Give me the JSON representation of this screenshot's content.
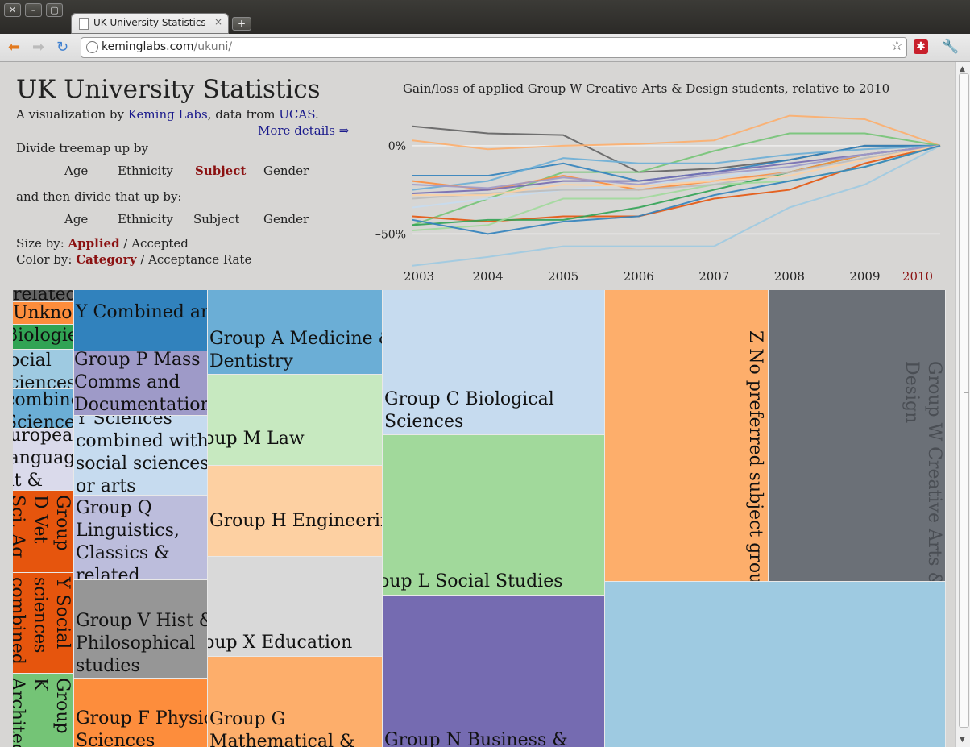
{
  "browser": {
    "tab_title": "UK University Statistics Vis",
    "tab_close": "×",
    "new_tab": "+",
    "url_host": "keminglabs.com",
    "url_path": "/ukuni/",
    "window_buttons": [
      "✕",
      "–",
      "▢"
    ],
    "icons": [
      "back-arrow-icon",
      "forward-arrow-icon",
      "reload-icon",
      "globe-icon",
      "star-icon",
      "extension-icon",
      "wrench-icon"
    ]
  },
  "page": {
    "title": "UK University Statistics",
    "subtitle_prefix": "A visualization by ",
    "subtitle_link1": "Keming Labs",
    "subtitle_mid": ", data from ",
    "subtitle_link2": "UCAS",
    "subtitle_end": ".",
    "more_details": "More details ⇒",
    "divide_label": "Divide treemap up by",
    "then_label": "and then divide that up by:",
    "divide_options": [
      "Age",
      "Ethnicity",
      "Subject",
      "Gender"
    ],
    "divide_selected": "Subject",
    "then_options": [
      "Age",
      "Ethnicity",
      "Subject",
      "Gender"
    ],
    "size_label": "Size by:",
    "size_options": [
      "Applied",
      "Accepted"
    ],
    "size_selected": "Applied",
    "color_label": "Color by:",
    "color_options": [
      "Category",
      "Acceptance Rate"
    ],
    "color_selected": "Category",
    "separator": "/"
  },
  "chart_data": {
    "type": "line",
    "title": "Gain/loss of applied Group W Creative Arts & Design students, relative to 2010",
    "x": [
      2003,
      2004,
      2005,
      2006,
      2007,
      2008,
      2009,
      2010
    ],
    "x_labels": [
      "2003",
      "2004",
      "2005",
      "2006",
      "2007",
      "2008",
      "2009",
      "2010"
    ],
    "highlight_x": "2010",
    "y_ticks": [
      {
        "v": 0,
        "label": "0%"
      },
      {
        "v": -50,
        "label": "–50%"
      }
    ],
    "ylim": [
      -70,
      20
    ],
    "highlight_color": "#8b1111",
    "series": [
      {
        "color": "#636363",
        "values": [
          11,
          7,
          6,
          -15,
          -13,
          -8,
          0,
          0
        ]
      },
      {
        "color": "#fdae6b",
        "values": [
          3,
          -2,
          0,
          1,
          3,
          17,
          15,
          0
        ]
      },
      {
        "color": "#74c476",
        "values": [
          -45,
          -30,
          -15,
          -15,
          -3,
          7,
          7,
          0
        ]
      },
      {
        "color": "#3182bd",
        "values": [
          -17,
          -17,
          -10,
          -20,
          -15,
          -8,
          0,
          0
        ]
      },
      {
        "color": "#6baed6",
        "values": [
          -25,
          -20,
          -7,
          -10,
          -10,
          -5,
          -2,
          0
        ]
      },
      {
        "color": "#e6550d",
        "values": [
          -40,
          -43,
          -40,
          -40,
          -30,
          -25,
          -10,
          0
        ]
      },
      {
        "color": "#31a354",
        "values": [
          -45,
          -42,
          -42,
          -35,
          -25,
          -15,
          -5,
          0
        ]
      },
      {
        "color": "#9ecae1",
        "values": [
          -68,
          -63,
          -57,
          -57,
          -57,
          -35,
          -22,
          0
        ]
      },
      {
        "color": "#fd8d3c",
        "values": [
          -20,
          -25,
          -17,
          -25,
          -20,
          -15,
          -5,
          0
        ]
      },
      {
        "color": "#c6dbef",
        "values": [
          -35,
          -30,
          -25,
          -22,
          -18,
          -12,
          -5,
          0
        ]
      },
      {
        "color": "#a1d99b",
        "values": [
          -48,
          -45,
          -30,
          -30,
          -22,
          -20,
          -12,
          0
        ]
      },
      {
        "color": "#756bb1",
        "values": [
          -27,
          -25,
          -20,
          -20,
          -15,
          -10,
          -5,
          0
        ]
      },
      {
        "color": "#bdbdbd",
        "values": [
          -30,
          -27,
          -25,
          -25,
          -22,
          -15,
          -7,
          0
        ]
      },
      {
        "color": "#9e9ac8",
        "values": [
          -22,
          -24,
          -18,
          -22,
          -16,
          -12,
          -5,
          0
        ]
      },
      {
        "color": "#fdd0a2",
        "values": [
          -28,
          -28,
          -22,
          -23,
          -20,
          -17,
          -8,
          0
        ]
      },
      {
        "color": "#3182bd",
        "values": [
          -42,
          -50,
          -43,
          -40,
          -28,
          -20,
          -12,
          0
        ]
      }
    ]
  },
  "treemap": [
    {
      "label": "related",
      "color": "#636363"
    },
    {
      "label": "Unknown",
      "color": "#fd8d3c"
    },
    {
      "label": "Biologies",
      "color": "#31a354"
    },
    {
      "label": "Social Sciences",
      "color": "#9ecae1"
    },
    {
      "label": "combined Sciences",
      "color": "#6baed6"
    },
    {
      "label": "European Languages, Lit & related",
      "color": "#dadaeb"
    },
    {
      "label": "Group D Vet Sci, Ag",
      "color": "#e6550d"
    },
    {
      "label": "Y Social sciences combined",
      "color": "#e6550d"
    },
    {
      "label": "Group K Architecture & B",
      "color": "#74c476"
    },
    {
      "label": "Y Combined arts",
      "color": "#3182bd"
    },
    {
      "label": "Group P Mass Comms and Documentation",
      "color": "#9e9ac8"
    },
    {
      "label": "Y Sciences combined with social sciences or arts",
      "color": "#c6dbef"
    },
    {
      "label": "Group Q Linguistics, Classics & related",
      "color": "#bcbddc"
    },
    {
      "label": "Group V Hist & Philosophical studies",
      "color": "#969696"
    },
    {
      "label": "Group F Physical Sciences",
      "color": "#fd8d3c"
    },
    {
      "label": "Group A Medicine & Dentistry",
      "color": "#6baed6"
    },
    {
      "label": "Group M Law",
      "color": "#c7e9c0"
    },
    {
      "label": "Group H Engineering",
      "color": "#fdd0a2"
    },
    {
      "label": "Group X Education",
      "color": "#d9d9d9"
    },
    {
      "label": "Group G Mathematical & Computer Sciences",
      "color": "#fdae6b"
    },
    {
      "label": "Group C Biological Sciences",
      "color": "#c6dbef"
    },
    {
      "label": "Group L Social Studies",
      "color": "#a1d99b"
    },
    {
      "label": "Group N Business & Administrative studies",
      "color": "#756bb1"
    },
    {
      "label": "Z No preferred subject group",
      "color": "#fdae6b"
    },
    {
      "label": "Group W Creative Arts & Design",
      "color": "#6b7077"
    },
    {
      "label": "",
      "color": "#9ecae1"
    }
  ]
}
